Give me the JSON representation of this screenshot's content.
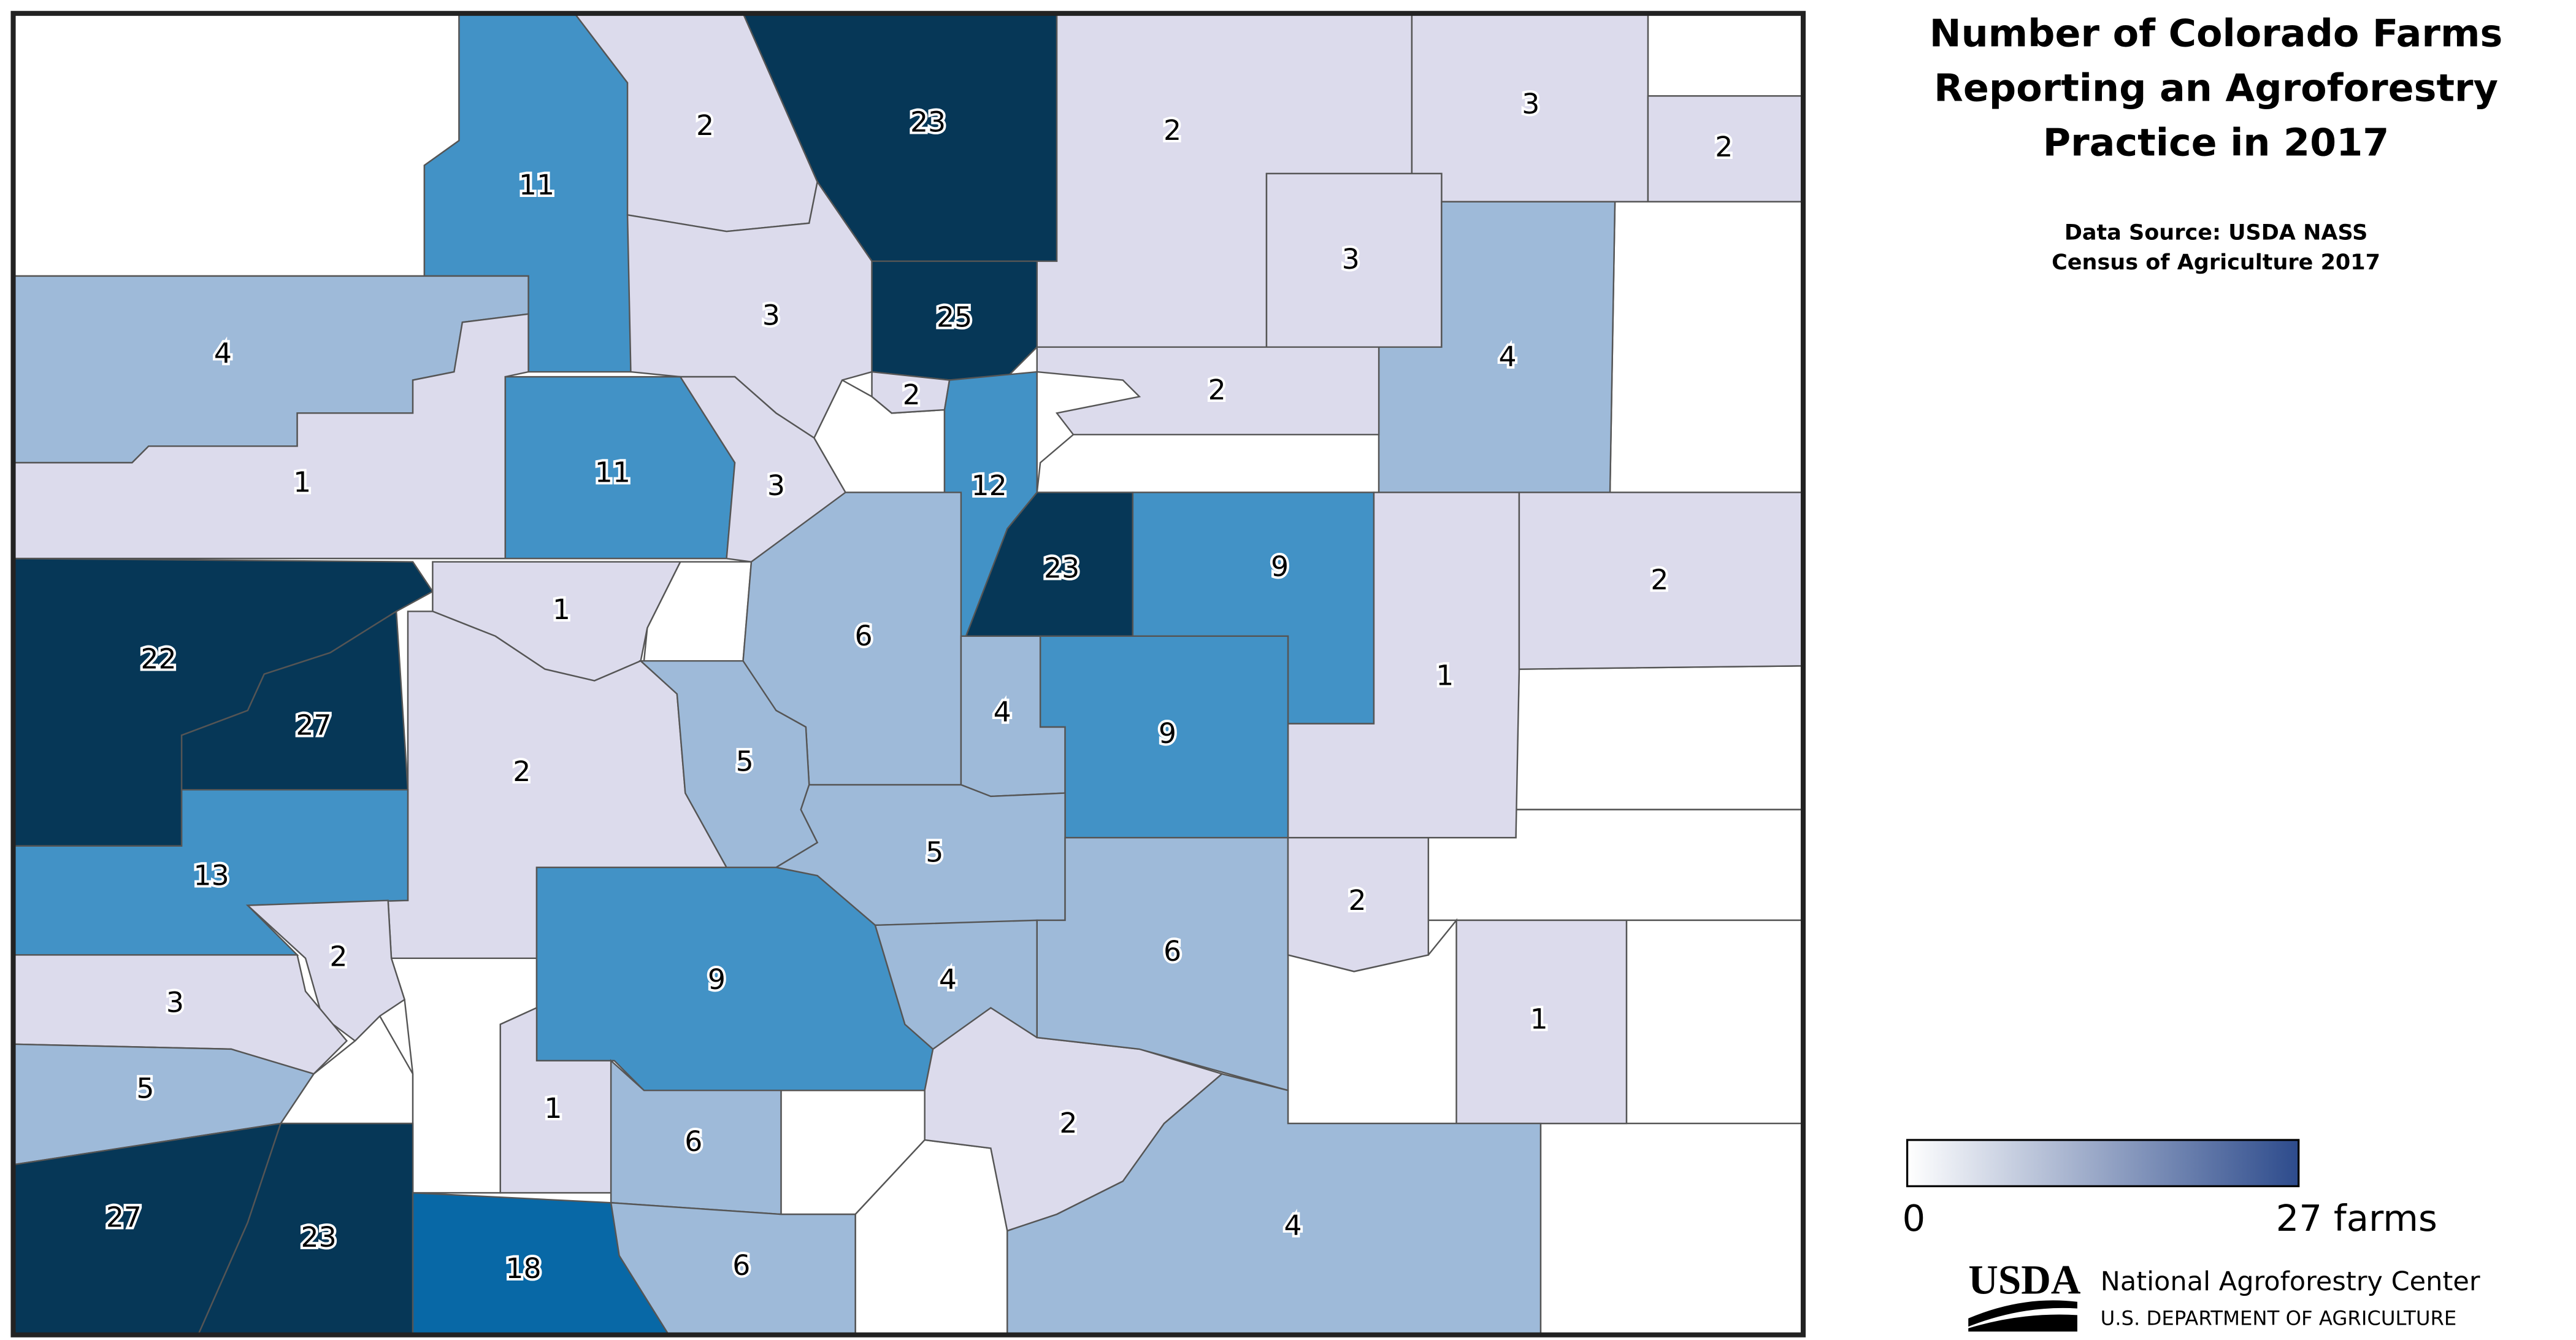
{
  "title": [
    "Number of Colorado Farms",
    "Reporting an Agroforestry",
    "Practice in 2017"
  ],
  "source": [
    "Data Source: USDA NASS",
    "Census of Agriculture 2017"
  ],
  "legend": {
    "min": 0,
    "max": {
      "value": 27,
      "label": "27 farms"
    },
    "colors": [
      "#ffffff",
      "#2d4b8c"
    ]
  },
  "logo": {
    "mark": "USDA",
    "name": "National Agroforestry Center",
    "department": "U.S. DEPARTMENT OF AGRICULTURE"
  },
  "counties": [
    {
      "value": 11,
      "color": "#4292c6"
    },
    {
      "value": 2,
      "color": "#dcdbec"
    },
    {
      "value": 23,
      "color": "#063757"
    },
    {
      "value": 2,
      "color": "#dcdbec"
    },
    {
      "value": 3,
      "color": "#dcdbec"
    },
    {
      "value": 2,
      "color": "#dcdbec"
    },
    {
      "value": 3,
      "color": "#dcdbec"
    },
    {
      "value": 4,
      "color": "#9ebad9"
    },
    {
      "value": 4,
      "color": "#9ebad9"
    },
    {
      "value": 1,
      "color": "#dcdbec"
    },
    {
      "value": 3,
      "color": "#dcdbec"
    },
    {
      "value": 25,
      "color": "#063757"
    },
    {
      "value": 2,
      "color": "#dcdbec"
    },
    {
      "value": 2,
      "color": "#dcdbec"
    },
    {
      "value": 11,
      "color": "#4292c6"
    },
    {
      "value": 3,
      "color": "#dcdbec"
    },
    {
      "value": 12,
      "color": "#4292c6"
    },
    {
      "value": 23,
      "color": "#063757"
    },
    {
      "value": 9,
      "color": "#4292c6"
    },
    {
      "value": 1,
      "color": "#dcdbec"
    },
    {
      "value": 2,
      "color": "#dcdbec"
    },
    {
      "value": 22,
      "color": "#063757"
    },
    {
      "value": 27,
      "color": "#063757"
    },
    {
      "value": 1,
      "color": "#dcdbec"
    },
    {
      "value": 2,
      "color": "#dcdbec"
    },
    {
      "value": 6,
      "color": "#9ebad9"
    },
    {
      "value": 5,
      "color": "#9ebad9"
    },
    {
      "value": 4,
      "color": "#9ebad9"
    },
    {
      "value": 9,
      "color": "#4292c6"
    },
    {
      "value": 5,
      "color": "#9ebad9"
    },
    {
      "value": 13,
      "color": "#4292c6"
    },
    {
      "value": 2,
      "color": "#dcdbec"
    },
    {
      "value": 3,
      "color": "#dcdbec"
    },
    {
      "value": 5,
      "color": "#9ebad9"
    },
    {
      "value": 27,
      "color": "#063757"
    },
    {
      "value": 23,
      "color": "#063757"
    },
    {
      "value": 9,
      "color": "#4292c6"
    },
    {
      "value": 1,
      "color": "#dcdbec"
    },
    {
      "value": 6,
      "color": "#9ebad9"
    },
    {
      "value": 18,
      "color": "#0868a6"
    },
    {
      "value": 6,
      "color": "#9ebad9"
    },
    {
      "value": 4,
      "color": "#9ebad9"
    },
    {
      "value": 2,
      "color": "#dcdbec"
    },
    {
      "value": 6,
      "color": "#9ebad9"
    },
    {
      "value": 2,
      "color": "#dcdbec"
    },
    {
      "value": 1,
      "color": "#dcdbec"
    },
    {
      "value": 4,
      "color": "#9ebad9"
    }
  ]
}
